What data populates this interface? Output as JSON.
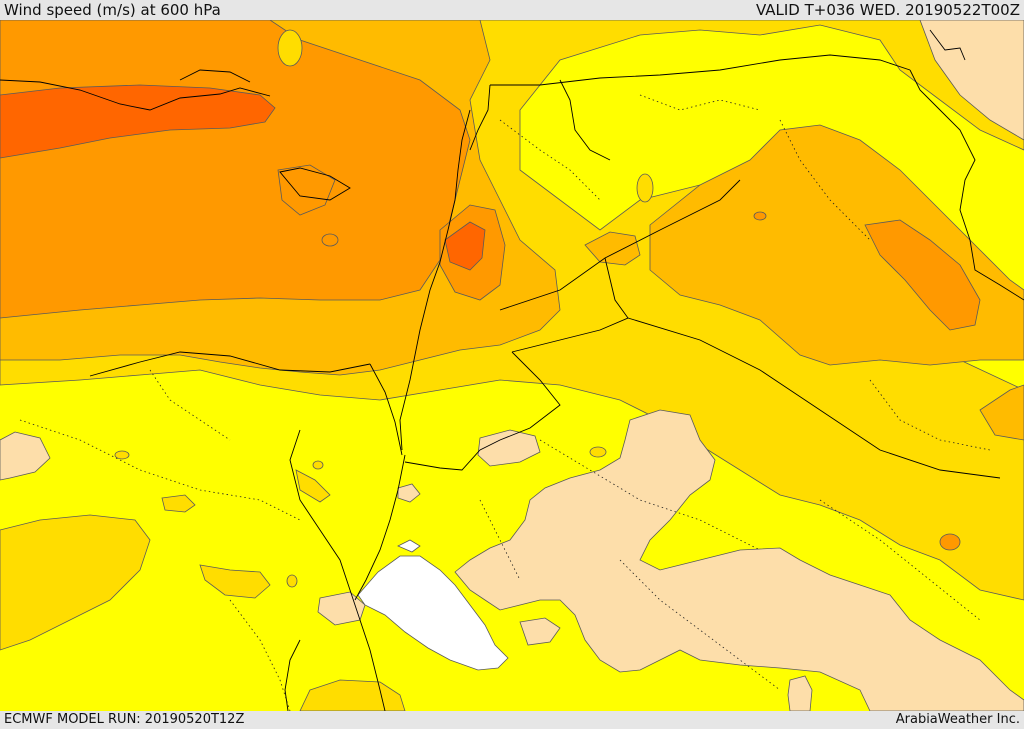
{
  "header": {
    "title": "Wind speed (m/s) at 600 hPa",
    "valid": "VALID T+036 WED. 20190522T00Z"
  },
  "footer": {
    "model_run": "ECMWF MODEL RUN: 20190520T12Z",
    "credit": "ArabiaWeather Inc."
  },
  "colors": {
    "white": "#ffffff",
    "tan": "#fddeaa",
    "yellow": "#ffff00",
    "gold": "#ffdd00",
    "amber": "#ffbb00",
    "orange": "#ff9900",
    "dark_orange": "#ff6600",
    "contour": "#5a5a5a",
    "border": "#000000"
  }
}
